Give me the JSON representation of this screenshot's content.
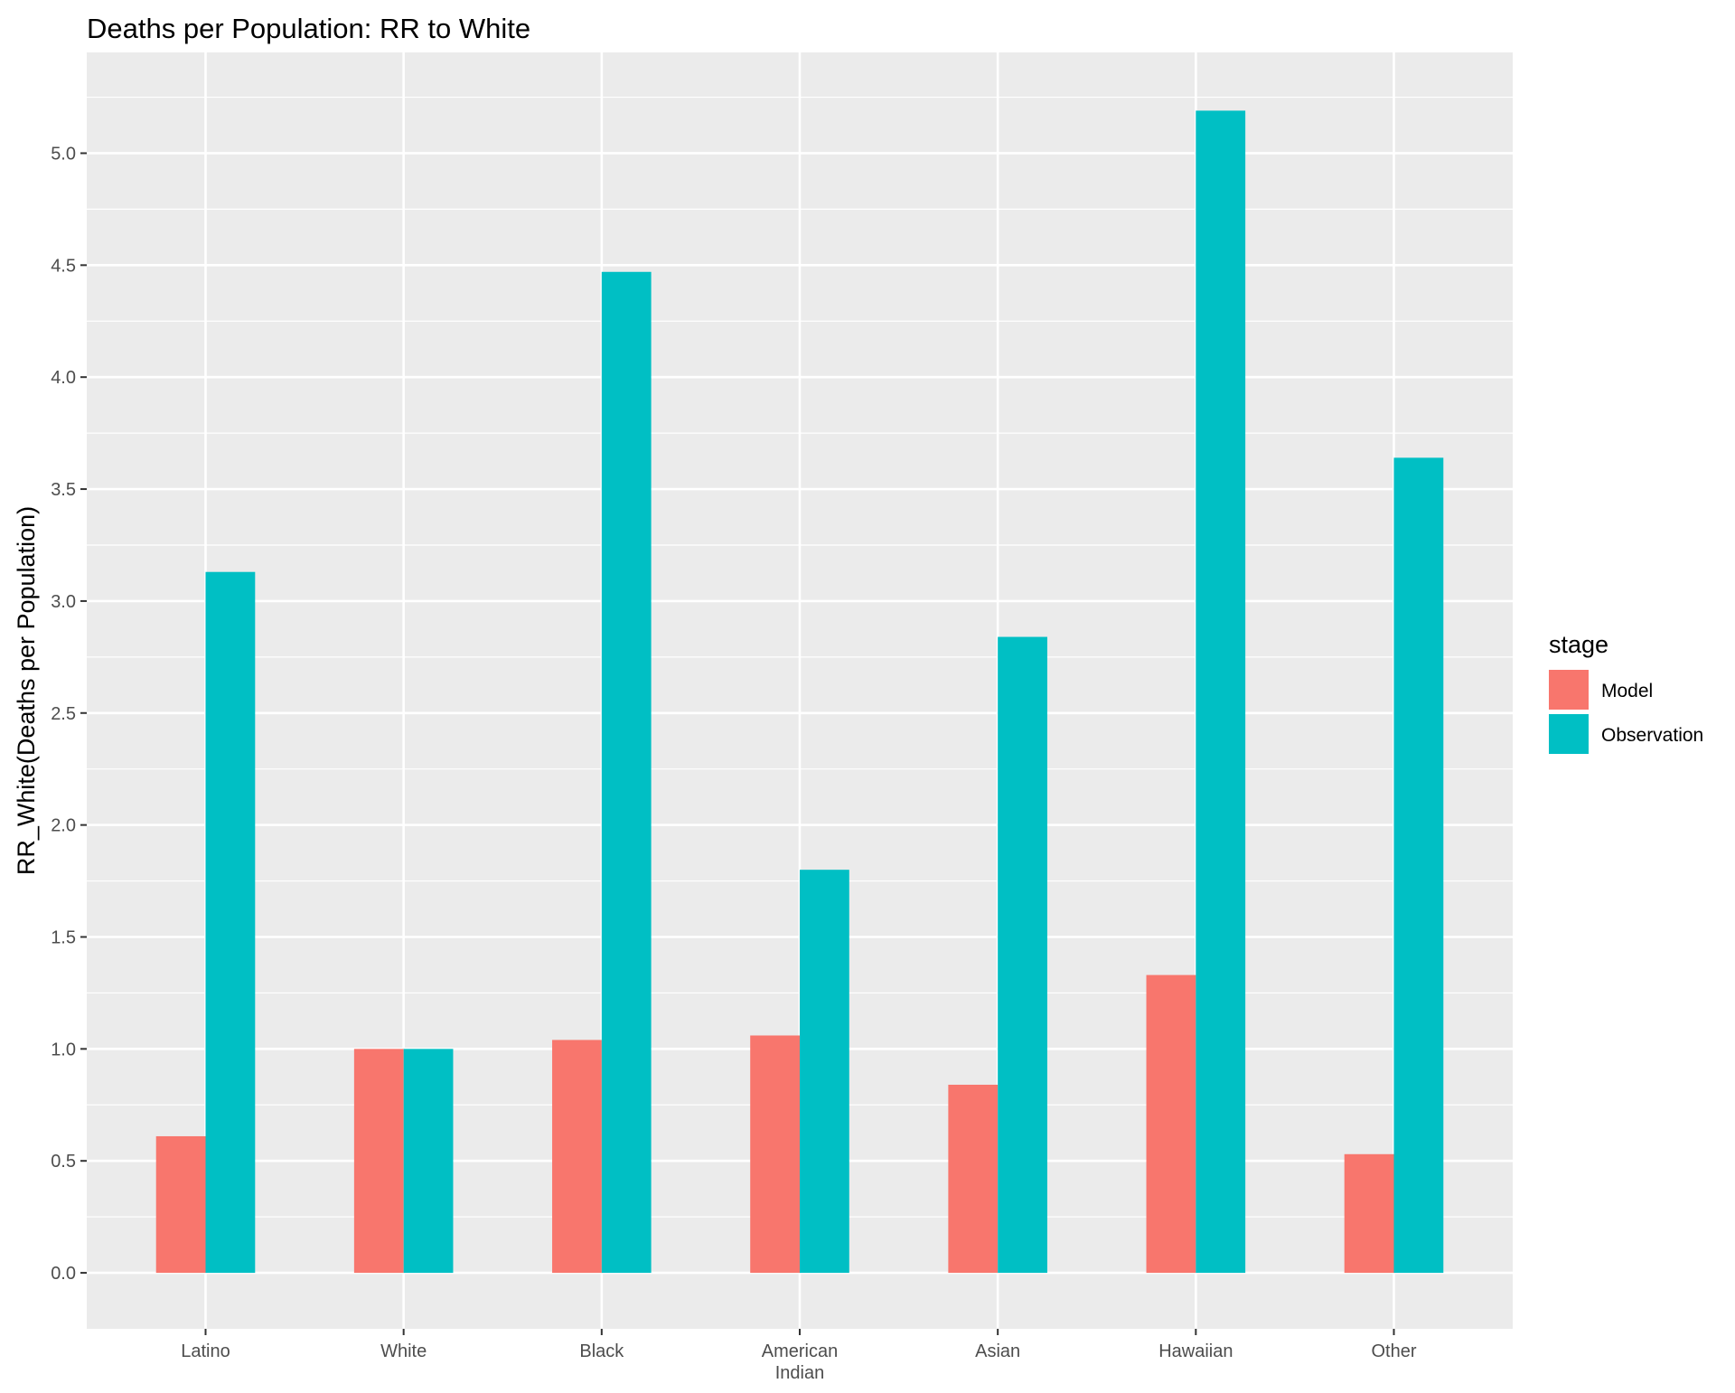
{
  "chart_data": {
    "type": "bar",
    "title": "Deaths per Population: RR to White",
    "xlabel": "",
    "ylabel": "RR_White(Deaths per Population)",
    "categories": [
      "Latino",
      "White",
      "Black",
      "American Indian",
      "Asian",
      "Hawaiian",
      "Other"
    ],
    "category_lines": [
      [
        "Latino"
      ],
      [
        "White"
      ],
      [
        "Black"
      ],
      [
        "American",
        "Indian"
      ],
      [
        "Asian"
      ],
      [
        "Hawaiian"
      ],
      [
        "Other"
      ]
    ],
    "series": [
      {
        "name": "Model",
        "color": "#F8766D",
        "values": [
          0.61,
          1.0,
          1.04,
          1.06,
          0.84,
          1.33,
          0.53
        ]
      },
      {
        "name": "Observation",
        "color": "#00BFC4",
        "values": [
          3.13,
          1.0,
          4.47,
          1.8,
          2.84,
          5.19,
          3.64
        ]
      }
    ],
    "ylim": [
      -0.25,
      5.45
    ],
    "yticks": [
      0.0,
      0.5,
      1.0,
      1.5,
      2.0,
      2.5,
      3.0,
      3.5,
      4.0,
      4.5,
      5.0
    ],
    "ytick_labels": [
      "0.0",
      "0.5",
      "1.0",
      "1.5",
      "2.0",
      "2.5",
      "3.0",
      "3.5",
      "4.0",
      "4.5",
      "5.0"
    ],
    "grid": true,
    "legend": {
      "title": "stage",
      "position": "right"
    }
  }
}
